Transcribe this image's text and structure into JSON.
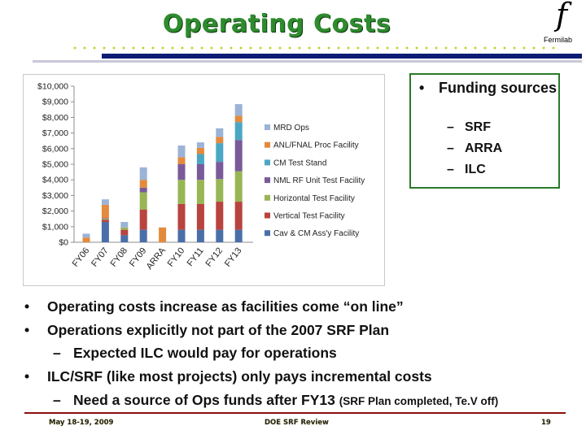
{
  "slide": {
    "title": "Operating Costs",
    "logo": {
      "glyph": "f",
      "text": "Fermilab"
    }
  },
  "funding": {
    "heading": "Funding sources",
    "items": [
      "SRF",
      "ARRA",
      "ILC"
    ]
  },
  "bullets": [
    {
      "level": 1,
      "text": "Operating costs increase as facilities come “on line”"
    },
    {
      "level": 1,
      "text": "Operations explicitly not part of the 2007 SRF Plan"
    },
    {
      "level": 2,
      "text": "Expected ILC would pay for operations"
    },
    {
      "level": 1,
      "text": "ILC/SRF (like most projects) only pays incremental costs"
    },
    {
      "level": 2,
      "text": "Need a source of Ops funds after FY13",
      "note": "(SRF Plan completed, Te.V off)"
    }
  ],
  "footer": {
    "date": "May 18-19, 2009",
    "center": "DOE SRF Review",
    "page": "19"
  },
  "chart_data": {
    "type": "bar",
    "stacked": true,
    "categories": [
      "FY06",
      "FY07",
      "FY08",
      "FY09",
      "ARRA",
      "FY10",
      "FY11",
      "FY12",
      "FY13"
    ],
    "ylim": [
      0,
      10000
    ],
    "yticks": [
      "$0",
      "$1,000",
      "$2,000",
      "$3,000",
      "$4,000",
      "$5,000",
      "$6,000",
      "$7,000",
      "$8,000",
      "$9,000",
      "$10,000"
    ],
    "legend_position": "right",
    "grid": false,
    "series": [
      {
        "name": "Cav & CM Ass'y Facility",
        "color": "#4a6fa8",
        "values": [
          0,
          1300,
          450,
          800,
          0,
          800,
          800,
          800,
          800
        ]
      },
      {
        "name": "Vertical Test Facility",
        "color": "#b8433f",
        "values": [
          0,
          150,
          350,
          1300,
          0,
          1650,
          1650,
          1800,
          1800
        ]
      },
      {
        "name": "Horizontal Test Facility",
        "color": "#98b654",
        "values": [
          0,
          50,
          150,
          1100,
          0,
          1550,
          1550,
          1450,
          1950
        ]
      },
      {
        "name": "NML RF Unit Test Facility",
        "color": "#7a5a9a",
        "values": [
          0,
          50,
          0,
          300,
          0,
          1000,
          1000,
          1100,
          2000
        ]
      },
      {
        "name": "CM Test Stand",
        "color": "#4aa7c4",
        "values": [
          0,
          0,
          0,
          0,
          0,
          0,
          650,
          1200,
          1150
        ]
      },
      {
        "name": "ANL/FNAL Proc Facility",
        "color": "#e48a3c",
        "values": [
          300,
          850,
          0,
          500,
          950,
          450,
          400,
          400,
          400
        ]
      },
      {
        "name": "MRD Ops",
        "color": "#9bb3d6",
        "values": [
          250,
          350,
          350,
          800,
          0,
          750,
          350,
          550,
          750
        ]
      }
    ]
  }
}
